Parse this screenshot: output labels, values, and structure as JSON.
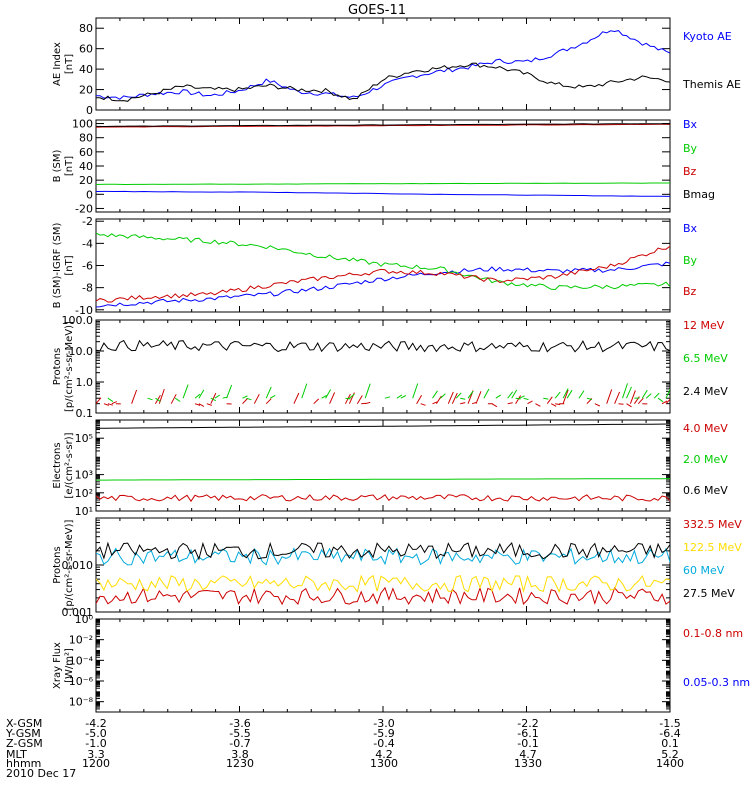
{
  "title": "GOES-11",
  "chart_data": [
    {
      "type": "line",
      "panel": "ae",
      "ylabel": [
        "AE Index",
        "[nT]"
      ],
      "ylim": [
        0,
        90
      ],
      "yscale": "linear",
      "yticks": [
        0,
        20,
        40,
        60,
        80
      ],
      "ytick_labels": [
        "0",
        "20",
        "40",
        "60",
        "80"
      ],
      "series": [
        {
          "name": "Kyoto AE",
          "color": "#0000ff",
          "kind": "wave",
          "points": [
            [
              0,
              14
            ],
            [
              0.05,
              12
            ],
            [
              0.1,
              16
            ],
            [
              0.15,
              18
            ],
            [
              0.2,
              14
            ],
            [
              0.25,
              19
            ],
            [
              0.3,
              29
            ],
            [
              0.35,
              18
            ],
            [
              0.4,
              16
            ],
            [
              0.45,
              12
            ],
            [
              0.5,
              24
            ],
            [
              0.55,
              33
            ],
            [
              0.6,
              38
            ],
            [
              0.65,
              42
            ],
            [
              0.7,
              48
            ],
            [
              0.75,
              47
            ],
            [
              0.8,
              55
            ],
            [
              0.85,
              66
            ],
            [
              0.9,
              80
            ],
            [
              0.95,
              66
            ],
            [
              1,
              55
            ]
          ]
        },
        {
          "name": "Themis AE",
          "color": "#000000",
          "kind": "wave",
          "points": [
            [
              0,
              13
            ],
            [
              0.05,
              10
            ],
            [
              0.1,
              16
            ],
            [
              0.15,
              23
            ],
            [
              0.2,
              20
            ],
            [
              0.25,
              20
            ],
            [
              0.3,
              24
            ],
            [
              0.35,
              20
            ],
            [
              0.4,
              19
            ],
            [
              0.45,
              10
            ],
            [
              0.5,
              30
            ],
            [
              0.55,
              38
            ],
            [
              0.6,
              41
            ],
            [
              0.65,
              45
            ],
            [
              0.7,
              42
            ],
            [
              0.75,
              35
            ],
            [
              0.8,
              25
            ],
            [
              0.85,
              22
            ],
            [
              0.9,
              27
            ],
            [
              0.95,
              32
            ],
            [
              1,
              29
            ]
          ]
        }
      ]
    },
    {
      "type": "line",
      "panel": "b_sm",
      "ylabel": [
        "B (SM)",
        "[nT]"
      ],
      "ylim": [
        -25,
        105
      ],
      "yscale": "linear",
      "yticks": [
        -20,
        0,
        20,
        40,
        60,
        80,
        100
      ],
      "ytick_labels": [
        "-20",
        "0",
        "20",
        "40",
        "60",
        "80",
        "100"
      ],
      "series": [
        {
          "name": "Bx",
          "color": "#0000ff",
          "kind": "smooth",
          "points": [
            [
              0,
              4
            ],
            [
              0.3,
              3
            ],
            [
              0.6,
              0
            ],
            [
              1,
              -3
            ]
          ]
        },
        {
          "name": "By",
          "color": "#00cc00",
          "kind": "smooth",
          "points": [
            [
              0,
              14
            ],
            [
              0.5,
              15
            ],
            [
              1,
              16
            ]
          ]
        },
        {
          "name": "Bz",
          "color": "#cc0000",
          "kind": "smooth",
          "points": [
            [
              0,
              95
            ],
            [
              0.5,
              97
            ],
            [
              1,
              99
            ]
          ]
        },
        {
          "name": "Bmag",
          "color": "#000000",
          "kind": "smooth",
          "points": [
            [
              0,
              96
            ],
            [
              0.5,
              98
            ],
            [
              1,
              100
            ]
          ]
        }
      ]
    },
    {
      "type": "line",
      "panel": "b_igrf",
      "ylabel": [
        "B (SM)-IGRF (SM)",
        "[nT]"
      ],
      "ylim": [
        -10.2,
        -1.8
      ],
      "yscale": "linear",
      "yticks": [
        -10,
        -8,
        -6,
        -4,
        -2
      ],
      "ytick_labels": [
        "-10",
        "-8",
        "-6",
        "-4",
        "-2"
      ],
      "series": [
        {
          "name": "Bx",
          "color": "#0000ff",
          "kind": "wave",
          "points": [
            [
              0,
              -9.6
            ],
            [
              0.1,
              -9.3
            ],
            [
              0.2,
              -9.0
            ],
            [
              0.3,
              -8.6
            ],
            [
              0.4,
              -8.0
            ],
            [
              0.5,
              -7.2
            ],
            [
              0.6,
              -6.6
            ],
            [
              0.7,
              -6.3
            ],
            [
              0.8,
              -6.5
            ],
            [
              0.9,
              -6.4
            ],
            [
              1,
              -5.8
            ]
          ]
        },
        {
          "name": "By",
          "color": "#00cc00",
          "kind": "wave",
          "points": [
            [
              0,
              -3.2
            ],
            [
              0.1,
              -3.5
            ],
            [
              0.2,
              -3.8
            ],
            [
              0.3,
              -4.3
            ],
            [
              0.4,
              -5.2
            ],
            [
              0.5,
              -5.9
            ],
            [
              0.6,
              -6.3
            ],
            [
              0.7,
              -7.5
            ],
            [
              0.8,
              -8.0
            ],
            [
              0.9,
              -7.9
            ],
            [
              1,
              -7.7
            ]
          ]
        },
        {
          "name": "Bz",
          "color": "#cc0000",
          "kind": "wave",
          "points": [
            [
              0,
              -9.2
            ],
            [
              0.1,
              -8.8
            ],
            [
              0.2,
              -8.6
            ],
            [
              0.3,
              -7.8
            ],
            [
              0.4,
              -7.1
            ],
            [
              0.5,
              -6.5
            ],
            [
              0.6,
              -6.7
            ],
            [
              0.7,
              -7.4
            ],
            [
              0.8,
              -7.0
            ],
            [
              0.9,
              -6.0
            ],
            [
              1,
              -4.2
            ]
          ]
        }
      ]
    },
    {
      "type": "line",
      "panel": "protons_low",
      "ylabel": [
        "Protons",
        "[p/(cm²-s-sr-MeV)]"
      ],
      "ylim": [
        0.1,
        100
      ],
      "yscale": "log",
      "yticks": [
        0.1,
        1,
        10,
        100
      ],
      "ytick_labels": [
        "0.1",
        "1.0",
        "10.0",
        "100.0"
      ],
      "series": [
        {
          "name": "12 MeV",
          "color": "#cc0000",
          "kind": "sparse",
          "points": [
            [
              0,
              0.2
            ],
            [
              1,
              0.2
            ]
          ]
        },
        {
          "name": "6.5 MeV",
          "color": "#00cc00",
          "kind": "sparse",
          "points": [
            [
              0,
              0.3
            ],
            [
              1,
              0.3
            ]
          ]
        },
        {
          "name": "2.4 MeV",
          "color": "#000000",
          "kind": "wave",
          "points": [
            [
              0,
              15
            ],
            [
              0.5,
              14
            ],
            [
              1,
              14
            ]
          ]
        }
      ]
    },
    {
      "type": "line",
      "panel": "electrons",
      "ylabel": [
        "Electrons",
        "[e/(cm²-s-sr)]"
      ],
      "ylim": [
        10,
        1000000
      ],
      "yscale": "log",
      "yticks": [
        10,
        100,
        1000,
        100000
      ],
      "ytick_labels": [
        "10¹",
        "10²",
        "10³",
        "10⁵"
      ],
      "series": [
        {
          "name": "4.0 MeV",
          "color": "#cc0000",
          "kind": "wave",
          "points": [
            [
              0,
              50
            ],
            [
              0.5,
              55
            ],
            [
              1,
              50
            ]
          ]
        },
        {
          "name": "2.0 MeV",
          "color": "#00cc00",
          "kind": "smooth",
          "points": [
            [
              0,
              500
            ],
            [
              0.5,
              550
            ],
            [
              1,
              600
            ]
          ]
        },
        {
          "name": "0.6 MeV",
          "color": "#000000",
          "kind": "smooth",
          "points": [
            [
              0,
              350000
            ],
            [
              0.5,
              450000
            ],
            [
              1,
              600000
            ]
          ]
        }
      ]
    },
    {
      "type": "line",
      "panel": "protons_high",
      "ylabel": [
        "Protons",
        "[p/(cm²-s-sr-MeV)]"
      ],
      "ylim": [
        0.001,
        0.1
      ],
      "yscale": "log",
      "yticks": [
        0.001,
        0.01
      ],
      "ytick_labels": [
        "0.001",
        "0.010"
      ],
      "series": [
        {
          "name": "332.5 MeV",
          "color": "#cc0000",
          "kind": "wave",
          "points": [
            [
              0,
              0.0022
            ],
            [
              1,
              0.0022
            ]
          ]
        },
        {
          "name": "122.5 MeV",
          "color": "#ffdd00",
          "kind": "wave",
          "points": [
            [
              0,
              0.004
            ],
            [
              1,
              0.004
            ]
          ]
        },
        {
          "name": "60 MeV",
          "color": "#00aadd",
          "kind": "wave",
          "points": [
            [
              0,
              0.015
            ],
            [
              1,
              0.015
            ]
          ]
        },
        {
          "name": "27.5 MeV",
          "color": "#000000",
          "kind": "wave",
          "points": [
            [
              0,
              0.02
            ],
            [
              1,
              0.02
            ]
          ]
        }
      ]
    },
    {
      "type": "line",
      "panel": "xray",
      "ylabel": [
        "Xray Flux",
        "[W/m²]"
      ],
      "ylim": [
        1e-09,
        1
      ],
      "yscale": "log",
      "yticks": [
        1,
        0.01,
        0.0001,
        1e-06,
        1e-08
      ],
      "ytick_labels": [
        "10⁰",
        "10⁻²",
        "10⁻⁴",
        "10⁻⁶",
        "10⁻⁸"
      ],
      "series": [
        {
          "name": "0.1-0.8 nm",
          "color": "#cc0000",
          "kind": "none",
          "points": []
        },
        {
          "name": "0.05-0.3 nm",
          "color": "#0000ff",
          "kind": "none",
          "points": []
        }
      ]
    }
  ],
  "x_axis": {
    "row_labels": [
      "X-GSM",
      "Y-GSM",
      "Z-GSM",
      "MLT",
      "hhmm"
    ],
    "columns": [
      [
        "-4.2",
        "-5.0",
        "-1.0",
        "3.3",
        "1200"
      ],
      [
        "-3.6",
        "-5.5",
        "-0.7",
        "3.8",
        "1230"
      ],
      [
        "-3.0",
        "-5.9",
        "-0.4",
        "4.2",
        "1300"
      ],
      [
        "-2.2",
        "-6.1",
        "-0.1",
        "4.7",
        "1330"
      ],
      [
        "-1.5",
        "-6.4",
        "0.1",
        "5.2",
        "1400"
      ]
    ],
    "date": "2010 Dec 17"
  },
  "colors": {
    "axis": "#000000",
    "red": "#cc0000",
    "green": "#00cc00",
    "blue": "#0000ff",
    "yellow": "#ffdd00",
    "cyan": "#00aadd"
  }
}
